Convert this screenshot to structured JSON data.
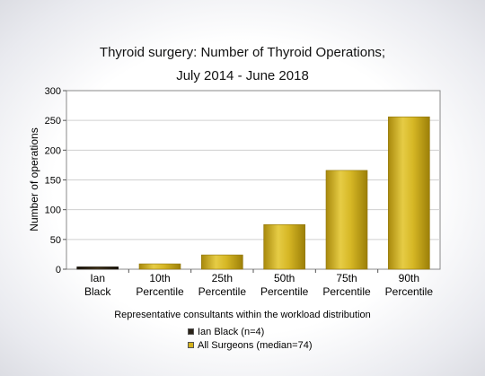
{
  "chart_data": {
    "type": "bar",
    "title": "Thyroid surgery: Number of Thyroid Operations;",
    "subtitle": "July 2014 - June 2018",
    "ylabel": "Number of operations",
    "xlabel": "Representative consultants within the workload distribution",
    "ylim": [
      0,
      300
    ],
    "yticks": [
      0,
      50,
      100,
      150,
      200,
      250,
      300
    ],
    "grid": true,
    "categories": [
      [
        "Ian",
        "Black"
      ],
      [
        "10th",
        "Percentile"
      ],
      [
        "25th",
        "Percentile"
      ],
      [
        "50th",
        "Percentile"
      ],
      [
        "75th",
        "Percentile"
      ],
      [
        "90th",
        "Percentile"
      ]
    ],
    "values": [
      4,
      9,
      24,
      75,
      166,
      256
    ],
    "bar_series": [
      "Ian Black (n=4)",
      "All Surgeons (median=74)",
      "All Surgeons (median=74)",
      "All Surgeons (median=74)",
      "All Surgeons (median=74)",
      "All Surgeons (median=74)"
    ],
    "series": [
      {
        "name": "Ian Black (n=4)",
        "color": "#2a2218"
      },
      {
        "name": "All Surgeons (median=74)",
        "color": "#d4b21c"
      }
    ],
    "legend_position": "bottom"
  }
}
